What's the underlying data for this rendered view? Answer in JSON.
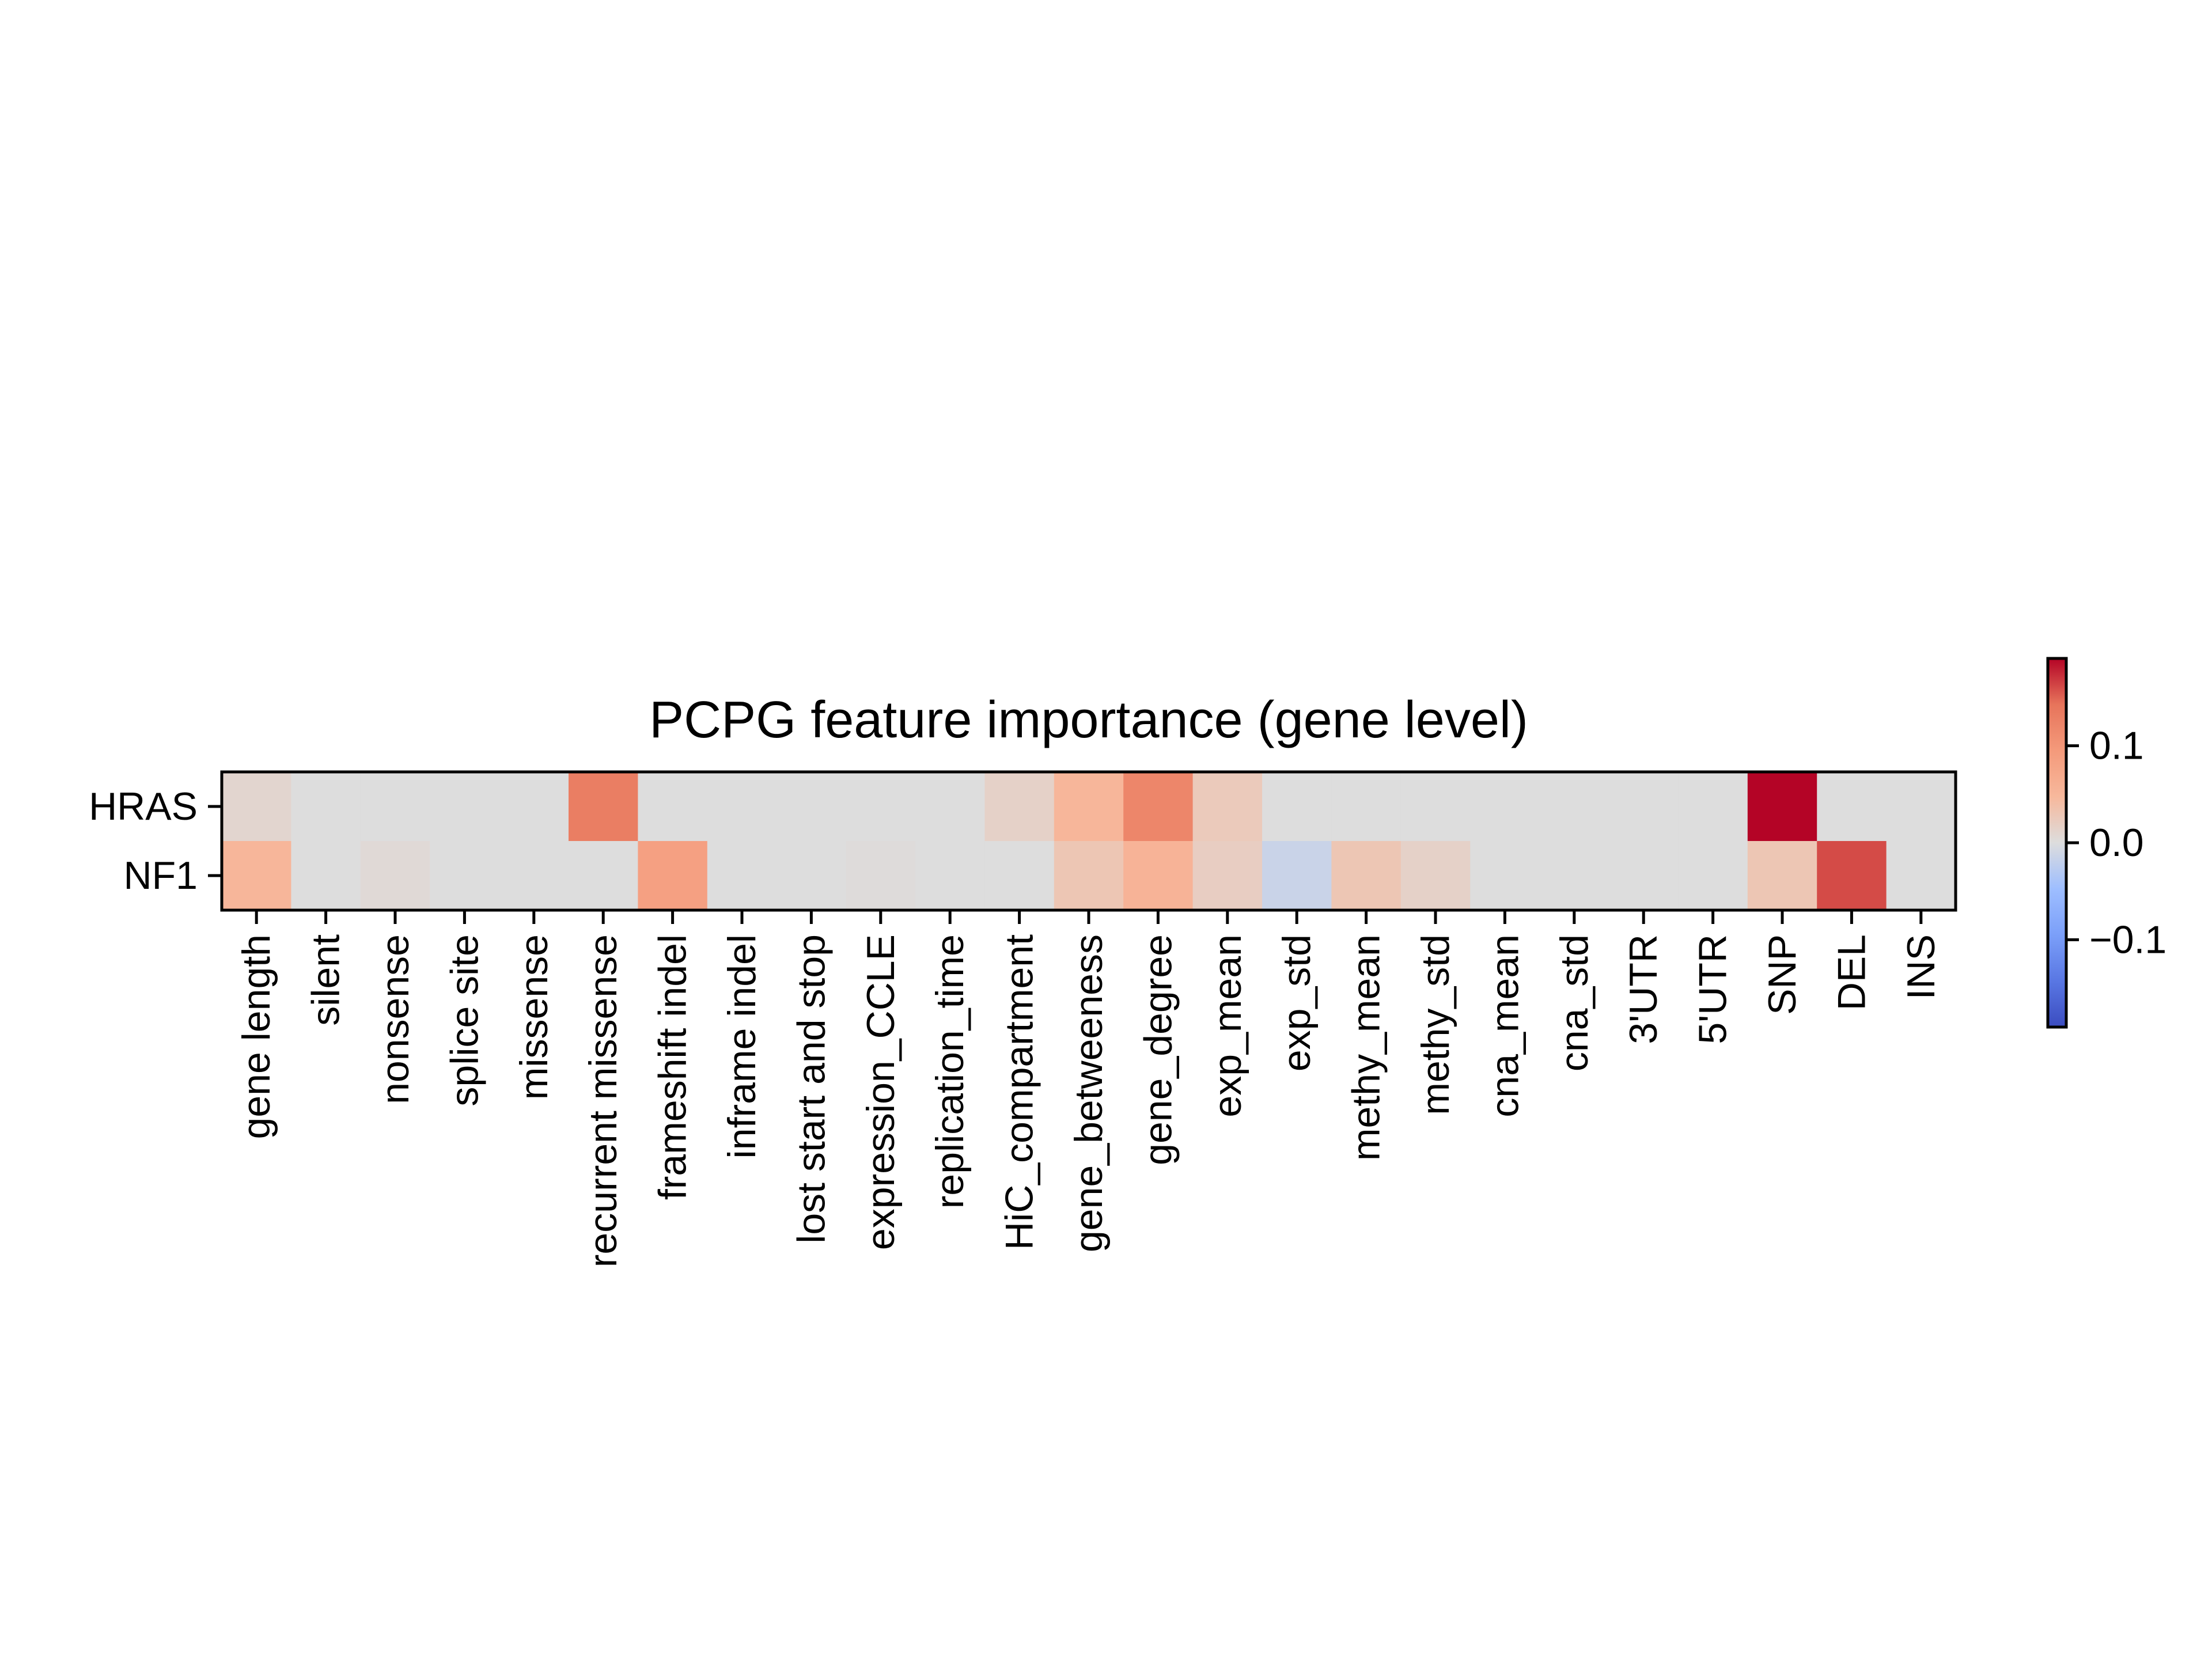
{
  "chart_data": {
    "type": "heatmap",
    "title": "PCPG feature importance (gene level)",
    "xlabel": "",
    "ylabel": "",
    "rows": [
      "HRAS",
      "NF1"
    ],
    "columns": [
      "gene length",
      "silent",
      "nonsense",
      "splice site",
      "missense",
      "recurrent missense",
      "frameshift indel",
      "inframe indel",
      "lost start and stop",
      "expression_CCLE",
      "replication_time",
      "HiC_compartment",
      "gene_betweeness",
      "gene_degree",
      "exp_mean",
      "exp_std",
      "methy_mean",
      "methy_std",
      "cna_mean",
      "cna_std",
      "3'UTR",
      "5'UTR",
      "SNP",
      "DEL",
      "INS"
    ],
    "values": [
      [
        0.01,
        0,
        0,
        0,
        0,
        0.13,
        0,
        0,
        0,
        0,
        0,
        0.015,
        0.05,
        0.12,
        0.025,
        0,
        0,
        0,
        0,
        0,
        0,
        0,
        0.19,
        0,
        0
      ],
      [
        0.05,
        0,
        0.005,
        0,
        0,
        0,
        0.085,
        0,
        0,
        0.002,
        0,
        0,
        0.03,
        0.055,
        0.02,
        -0.015,
        0.03,
        0.015,
        0,
        0,
        0,
        0,
        0.03,
        0.16,
        0
      ]
    ],
    "colormap": "coolwarm",
    "vmin": -0.19,
    "vmax": 0.19,
    "colorbar": {
      "ticks": [
        0.1,
        0.0,
        -0.1
      ],
      "tick_labels": [
        "0.1",
        "0.0",
        "−0.1"
      ]
    },
    "grid": false,
    "legend": "colorbar-right"
  }
}
